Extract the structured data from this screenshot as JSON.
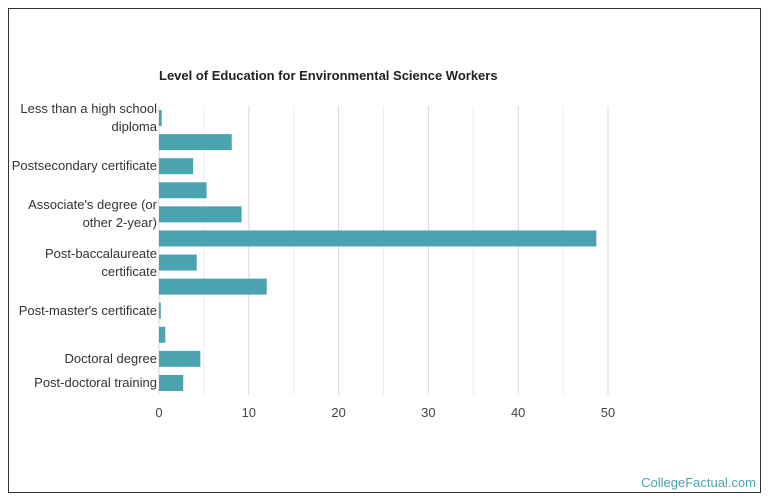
{
  "chart_data": {
    "type": "bar",
    "orientation": "horizontal",
    "title": "Level of Education for Environmental Science Workers",
    "categories": [
      "Less than a high school diploma",
      null,
      "Postsecondary certificate",
      null,
      "Associate's degree (or other 2-year)",
      null,
      "Post-baccalaureate certificate",
      null,
      "Post-master's certificate",
      null,
      "Doctoral degree",
      "Post-doctoral training"
    ],
    "values": [
      0.3,
      8.1,
      3.8,
      5.3,
      9.2,
      48.7,
      4.2,
      12.0,
      0.2,
      0.7,
      4.6,
      2.7
    ],
    "color": "#4ba2b1",
    "xlim": [
      0,
      50
    ],
    "xticks": [
      0,
      10,
      20,
      30,
      40,
      50
    ],
    "minor_xticks": [
      5,
      15,
      25,
      35,
      45
    ],
    "grid": true
  },
  "footer": "CollegeFactual.com"
}
